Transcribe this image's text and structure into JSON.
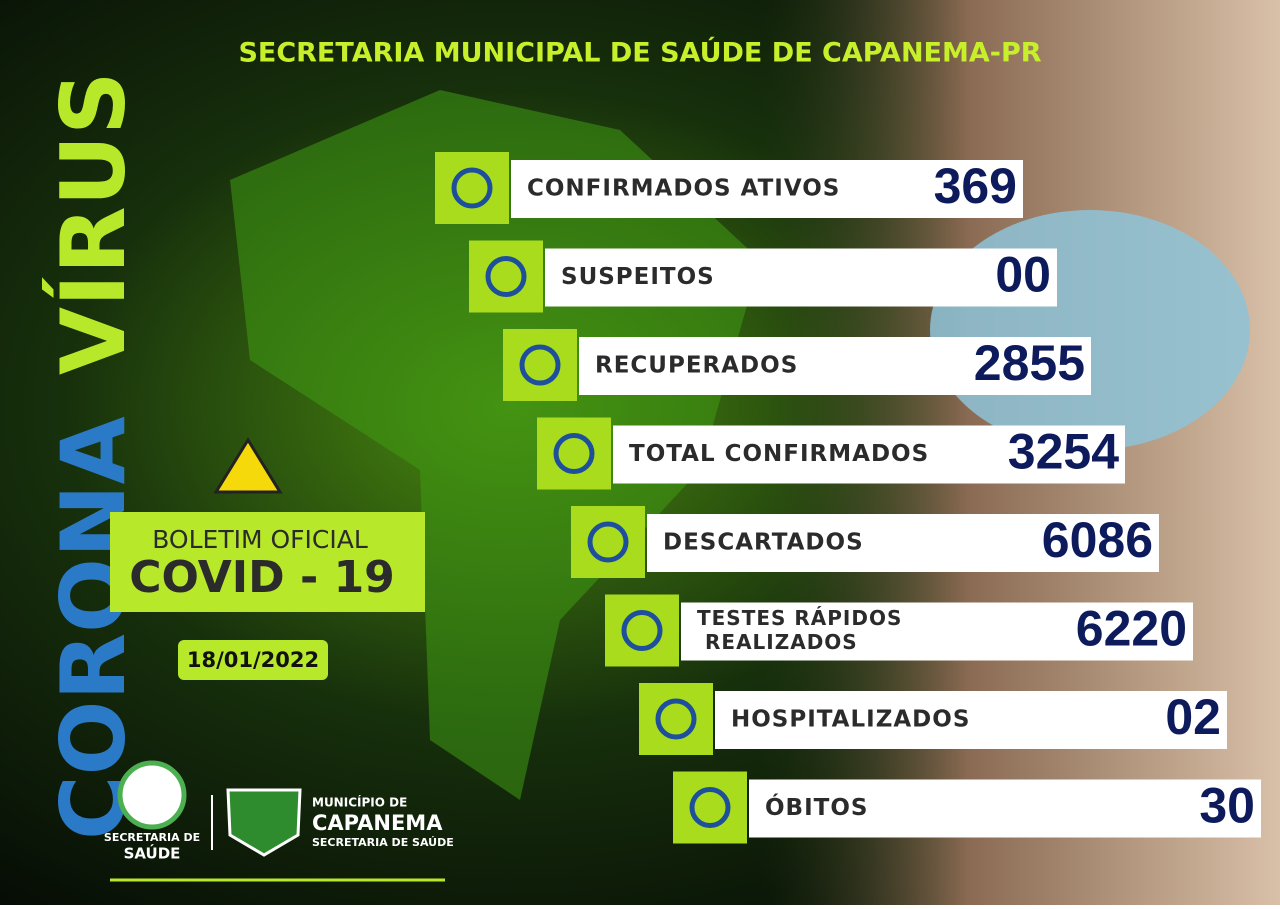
{
  "header": {
    "title": "SECRETARIA MUNICIPAL DE SAÚDE DE CAPANEMA-PR"
  },
  "side": {
    "word1": "CORONA",
    "word2": "VÍRUS"
  },
  "bulletin": {
    "line1": "BOLETIM OFICIAL",
    "line2": "COVID - 19",
    "date": "18/01/2022"
  },
  "stats": [
    {
      "lines": [
        "CONFIRMADOS ATIVOS"
      ],
      "value": "369"
    },
    {
      "lines": [
        "SUSPEITOS"
      ],
      "value": "00"
    },
    {
      "lines": [
        "RECUPERADOS"
      ],
      "value": "2855"
    },
    {
      "lines": [
        "TOTAL CONFIRMADOS"
      ],
      "value": "3254"
    },
    {
      "lines": [
        "DESCARTADOS"
      ],
      "value": "6086"
    },
    {
      "lines": [
        "TESTES RÁPIDOS",
        "REALIZADOS"
      ],
      "value": "6220"
    },
    {
      "lines": [
        "HOSPITALIZADOS"
      ],
      "value": "02"
    },
    {
      "lines": [
        "ÓBITOS"
      ],
      "value": "30"
    }
  ],
  "footer": {
    "logo1_line1": "SECRETARIA DE",
    "logo1_line2": "SAÚDE",
    "logo2_line1": "MUNICÍPIO DE",
    "logo2_line2": "CAPANEMA",
    "logo2_line3": "SECRETARIA DE SAÚDE"
  }
}
